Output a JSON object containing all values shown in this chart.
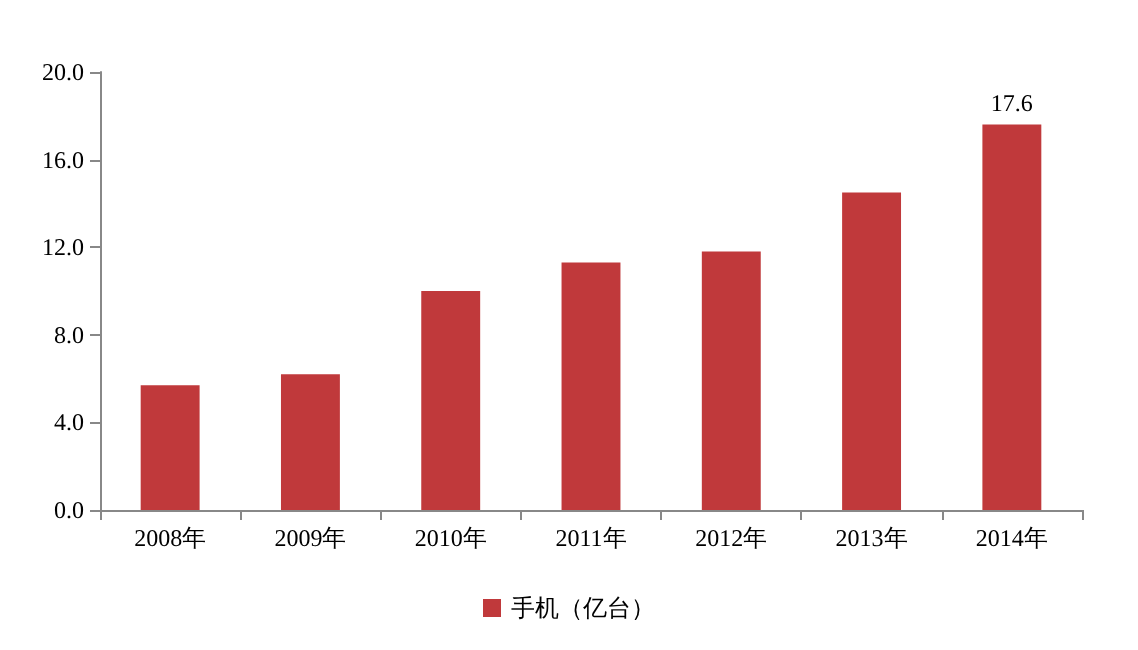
{
  "chart_data": {
    "type": "bar",
    "categories": [
      "2008年",
      "2009年",
      "2010年",
      "2011年",
      "2012年",
      "2013年",
      "2014年"
    ],
    "series": [
      {
        "name": "手机（亿台）",
        "color": "#c0393b",
        "values": [
          5.7,
          6.2,
          10.0,
          11.3,
          11.8,
          14.5,
          17.6
        ],
        "value_labels": [
          null,
          null,
          null,
          null,
          null,
          null,
          "17.6"
        ]
      }
    ],
    "ylim": [
      0,
      20
    ],
    "yticks": [
      {
        "value": 0,
        "label": "0.0"
      },
      {
        "value": 4,
        "label": "4.0"
      },
      {
        "value": 8,
        "label": "8.0"
      },
      {
        "value": 12,
        "label": "12.0"
      },
      {
        "value": 16,
        "label": "16.0"
      },
      {
        "value": 20,
        "label": "20.0"
      }
    ],
    "grid": false,
    "legend": "bottom"
  }
}
